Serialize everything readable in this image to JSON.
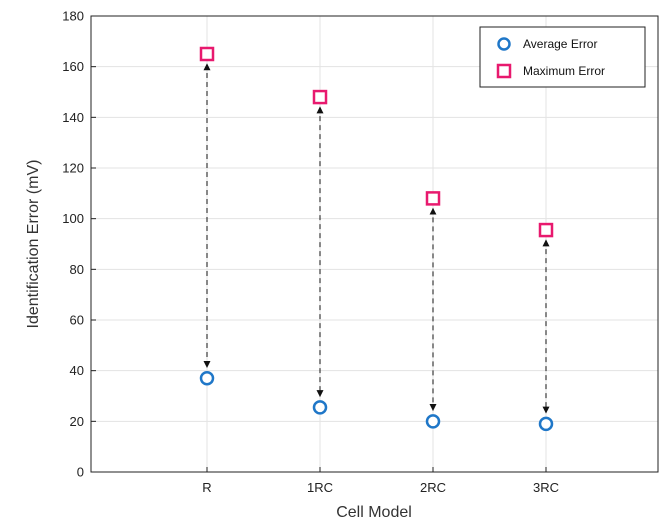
{
  "chart_data": {
    "type": "scatter",
    "categories": [
      "R",
      "1RC",
      "2RC",
      "3RC"
    ],
    "series": [
      {
        "name": "Average Error",
        "values": [
          37,
          25.5,
          20,
          19
        ],
        "color": "#1f77c8",
        "marker": "circle"
      },
      {
        "name": "Maximum Error",
        "values": [
          165,
          148,
          108,
          95.5
        ],
        "color": "#e8196e",
        "marker": "square"
      }
    ],
    "annotations": {
      "type": "dashed double-headed arrows",
      "between": [
        "Average Error",
        "Maximum Error"
      ]
    },
    "xlabel": "Cell Model",
    "ylabel": "Identification Error (mV)",
    "ylim": [
      0,
      180
    ],
    "yticks": [
      0,
      20,
      40,
      60,
      80,
      100,
      120,
      140,
      160,
      180
    ],
    "grid": true,
    "legend_position": "top-right"
  }
}
